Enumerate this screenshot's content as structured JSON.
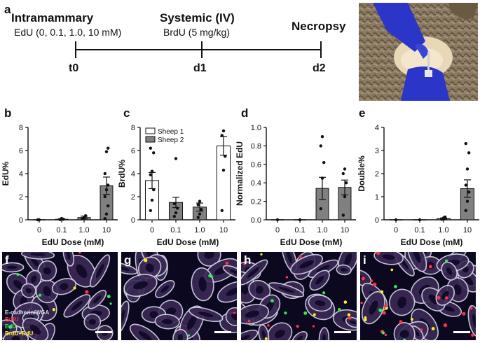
{
  "panel_labels": [
    "a",
    "b",
    "c",
    "d",
    "e",
    "f",
    "g",
    "h",
    "i"
  ],
  "timeline": {
    "intramammary_title": "Intramammary",
    "intramammary_sub": "EdU (0, 0.1, 1.0, 10 mM)",
    "systemic_title": "Systemic (IV)",
    "systemic_sub": "BrdU (5 mg/kg)",
    "necropsy_title": "Necropsy",
    "days": [
      "t0",
      "d1",
      "d2"
    ]
  },
  "photo": {
    "icon": "sheep-udder-injection-photo"
  },
  "microscopy": {
    "legend": [
      {
        "label": "E-cadherin/WGA",
        "color": "#d8d8e8"
      },
      {
        "label": "BrdU",
        "color": "#ff3344"
      },
      {
        "label": "EdU",
        "color": "#33ee55"
      },
      {
        "label": "BrdU+EdU",
        "color": "#ffee22"
      }
    ]
  },
  "chart_data": [
    {
      "panel": "b",
      "type": "bar",
      "categories": [
        "0",
        "0.1",
        "1.0",
        "10"
      ],
      "values": [
        0.0,
        0.05,
        0.2,
        2.95
      ],
      "errors": [
        0.0,
        0.04,
        0.12,
        0.75
      ],
      "points": [
        [
          0,
          0
        ],
        [
          0.02,
          0.12,
          0.05
        ],
        [
          0.1,
          0.2,
          0.35,
          0.12
        ],
        [
          0.1,
          0.5,
          1.2,
          2.0,
          2.6,
          3.0,
          4.0,
          5.9,
          6.2
        ]
      ],
      "bar_color": "#808080",
      "xlabel": "EdU Dose (mM)",
      "ylabel": "EdU%",
      "ylim": [
        0,
        8
      ],
      "yticks": [
        0,
        2,
        4,
        6,
        8
      ]
    },
    {
      "panel": "c",
      "type": "bar",
      "categories": [
        "0",
        "0.1",
        "1.0",
        "10"
      ],
      "values": [
        3.4,
        1.5,
        1.1,
        6.4
      ],
      "errors": [
        0.7,
        0.45,
        0.35,
        0.8
      ],
      "points": [
        [
          0.8,
          1.7,
          2.6,
          3.9,
          4.2,
          5.8,
          6.2
        ],
        [
          0.3,
          0.6,
          1.0,
          1.4,
          5.3
        ],
        [
          0.2,
          0.5,
          0.9,
          1.3,
          1.6
        ],
        [
          0.8,
          4.3,
          5.5,
          7.3,
          7.7
        ]
      ],
      "bar_colors": [
        "#ffffff",
        "#808080",
        "#808080",
        "#ffffff"
      ],
      "legend": [
        {
          "label": "Sheep 1",
          "color": "#ffffff"
        },
        {
          "label": "Sheep 2",
          "color": "#808080"
        }
      ],
      "xlabel": "EdU Dose (mM)",
      "ylabel": "BrdU%",
      "ylim": [
        0,
        8
      ],
      "yticks": [
        0,
        2,
        4,
        6,
        8
      ]
    },
    {
      "panel": "d",
      "type": "bar",
      "categories": [
        "0",
        "0.1",
        "1.0",
        "10"
      ],
      "values": [
        0.0,
        0.0,
        0.34,
        0.35
      ],
      "errors": [
        0.0,
        0.0,
        0.12,
        0.08
      ],
      "points": [
        [
          0
        ],
        [
          0
        ],
        [
          0.12,
          0.45,
          0.62,
          0.8,
          0.9
        ],
        [
          0.05,
          0.25,
          0.4,
          0.5,
          0.55
        ]
      ],
      "bar_color": "#808080",
      "xlabel": "EdU Dose (mM)",
      "ylabel": "Normalized EdU",
      "ylim": [
        0,
        1.0
      ],
      "yticks": [
        0.0,
        0.2,
        0.4,
        0.6,
        0.8,
        1.0
      ]
    },
    {
      "panel": "e",
      "type": "bar",
      "categories": [
        "0",
        "0.1",
        "1.0",
        "10"
      ],
      "values": [
        0.0,
        0.0,
        0.05,
        1.35
      ],
      "errors": [
        0.0,
        0.0,
        0.03,
        0.38
      ],
      "points": [
        [
          0
        ],
        [
          0
        ],
        [
          0.02,
          0.08,
          0.12
        ],
        [
          0.4,
          0.8,
          1.2,
          1.5,
          2.2,
          2.9,
          3.3
        ]
      ],
      "bar_color": "#808080",
      "xlabel": "EdU Dose (mM)",
      "ylabel": "Double%",
      "ylim": [
        0,
        4
      ],
      "yticks": [
        0,
        1,
        2,
        3,
        4
      ]
    }
  ]
}
